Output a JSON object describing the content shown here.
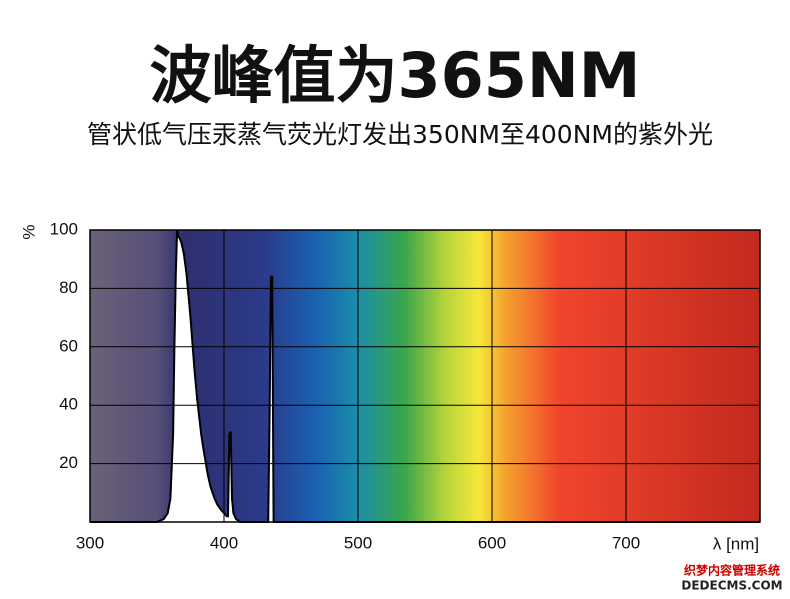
{
  "chart_data": {
    "type": "area",
    "title": "波峰值为365NM",
    "subtitle": "管状低气压汞蒸气荧光灯发出350NM至400NM的紫外光",
    "x_label": "λ [nm]",
    "y_label": "%",
    "x": [
      300,
      340,
      350,
      355,
      358,
      360,
      362,
      363,
      364,
      365,
      366,
      367,
      368,
      370,
      372,
      375,
      378,
      380,
      383,
      385,
      388,
      390,
      393,
      395,
      398,
      400,
      402,
      403,
      404,
      405,
      406,
      407,
      409,
      412,
      433,
      434,
      435,
      436,
      437,
      440,
      800
    ],
    "values": [
      0,
      0,
      0,
      1,
      3,
      8,
      30,
      60,
      85,
      100,
      98,
      97,
      96,
      92,
      85,
      70,
      52,
      42,
      30,
      24,
      16,
      12,
      8,
      6,
      4,
      3,
      2,
      2,
      30,
      31,
      8,
      3,
      1,
      0,
      0,
      37,
      84,
      84,
      0,
      0,
      0
    ],
    "color": "#000000",
    "fill": "#ffffff",
    "xlim": [
      300,
      800
    ],
    "ylim": [
      0,
      100
    ],
    "xticks": [
      300,
      400,
      500,
      600,
      700
    ],
    "yticks": [
      20,
      40,
      60,
      80,
      100
    ],
    "grid": true,
    "watermark": [
      "织梦内容管理系统",
      "DEDECMS.COM"
    ]
  }
}
